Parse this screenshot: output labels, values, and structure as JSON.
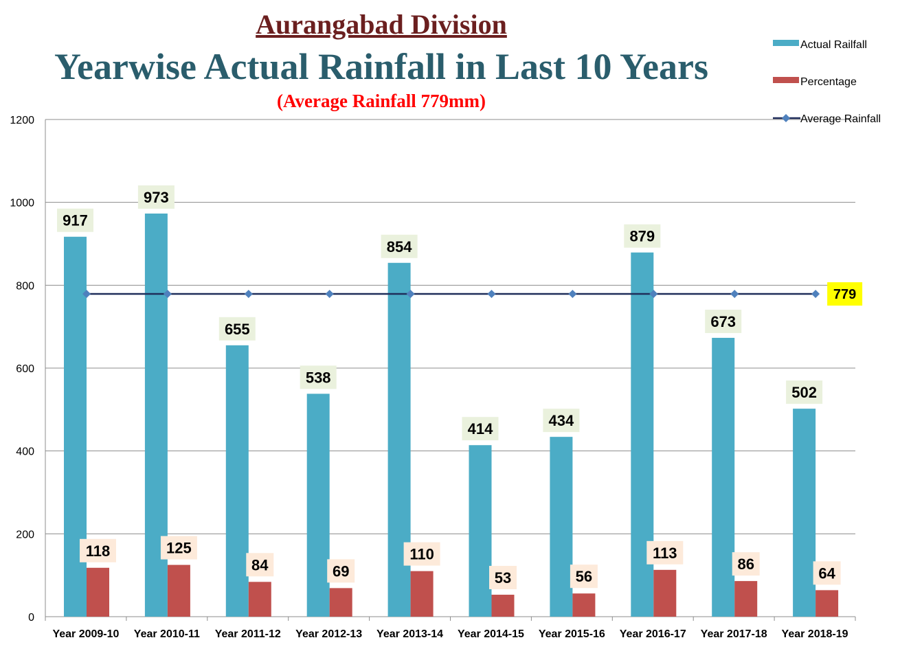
{
  "chart_data": {
    "type": "bar",
    "title": "Aurangabad Division",
    "subtitle": "Yearwise Actual Rainfall in Last 10 Years",
    "note": "(Average Rainfall 779mm)",
    "categories": [
      "Year 2009-10",
      "Year 2010-11",
      "Year 2011-12",
      "Year 2012-13",
      "Year 2013-14",
      "Year 2014-15",
      "Year 2015-16",
      "Year 2016-17",
      "Year 2017-18",
      "Year 2018-19"
    ],
    "series": [
      {
        "name": "Actual Railfall",
        "type": "bar",
        "color": "#4bacc6",
        "values": [
          917,
          973,
          655,
          538,
          854,
          414,
          434,
          879,
          673,
          502
        ]
      },
      {
        "name": "Percentage",
        "type": "bar",
        "color": "#c0504d",
        "values": [
          118,
          125,
          84,
          69,
          110,
          53,
          56,
          113,
          86,
          64
        ]
      },
      {
        "name": "Average Rainfall",
        "type": "line",
        "color": "#1f2d5a",
        "marker_color": "#4f81bd",
        "values": [
          779,
          779,
          779,
          779,
          779,
          779,
          779,
          779,
          779,
          779
        ]
      }
    ],
    "average_label": "779",
    "ylim": [
      0,
      1200
    ],
    "yticks": [
      "0",
      "200",
      "400",
      "600",
      "800",
      "1000",
      "1200"
    ],
    "xlabel": "",
    "ylabel": "",
    "grid": true,
    "legend_position": "top-right"
  },
  "colors": {
    "title": "#6b1f1f",
    "subtitle": "#2a5d6c",
    "note": "#ff0000",
    "label_bg_bar": "#eaf1dd",
    "label_bg_pct": "#fdeada",
    "avg_label_bg": "#ffff00",
    "avg_label_text": "#ff0000"
  }
}
